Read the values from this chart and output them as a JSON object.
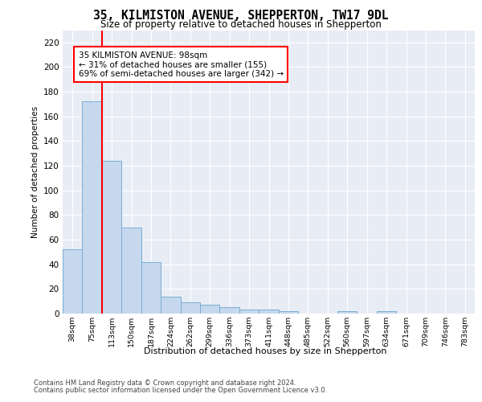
{
  "title_line1": "35, KILMISTON AVENUE, SHEPPERTON, TW17 9DL",
  "title_line2": "Size of property relative to detached houses in Shepperton",
  "xlabel": "Distribution of detached houses by size in Shepperton",
  "ylabel": "Number of detached properties",
  "bar_values": [
    52,
    172,
    124,
    70,
    42,
    14,
    9,
    7,
    5,
    3,
    3,
    2,
    0,
    0,
    2,
    0,
    2,
    0,
    0,
    0,
    0
  ],
  "categories": [
    "38sqm",
    "75sqm",
    "113sqm",
    "150sqm",
    "187sqm",
    "224sqm",
    "262sqm",
    "299sqm",
    "336sqm",
    "373sqm",
    "411sqm",
    "448sqm",
    "485sqm",
    "522sqm",
    "560sqm",
    "597sqm",
    "634sqm",
    "671sqm",
    "709sqm",
    "746sqm",
    "783sqm"
  ],
  "bar_color": "#c5d8ee",
  "bar_edge_color": "#7badd1",
  "vline_x": 1.5,
  "vline_color": "red",
  "annotation_text": "35 KILMISTON AVENUE: 98sqm\n← 31% of detached houses are smaller (155)\n69% of semi-detached houses are larger (342) →",
  "annotation_box_color": "white",
  "annotation_box_edge": "red",
  "ylim": [
    0,
    230
  ],
  "yticks": [
    0,
    20,
    40,
    60,
    80,
    100,
    120,
    140,
    160,
    180,
    200,
    220
  ],
  "plot_background": "#e8edf5",
  "grid_color": "white",
  "footer_line1": "Contains HM Land Registry data © Crown copyright and database right 2024.",
  "footer_line2": "Contains public sector information licensed under the Open Government Licence v3.0."
}
